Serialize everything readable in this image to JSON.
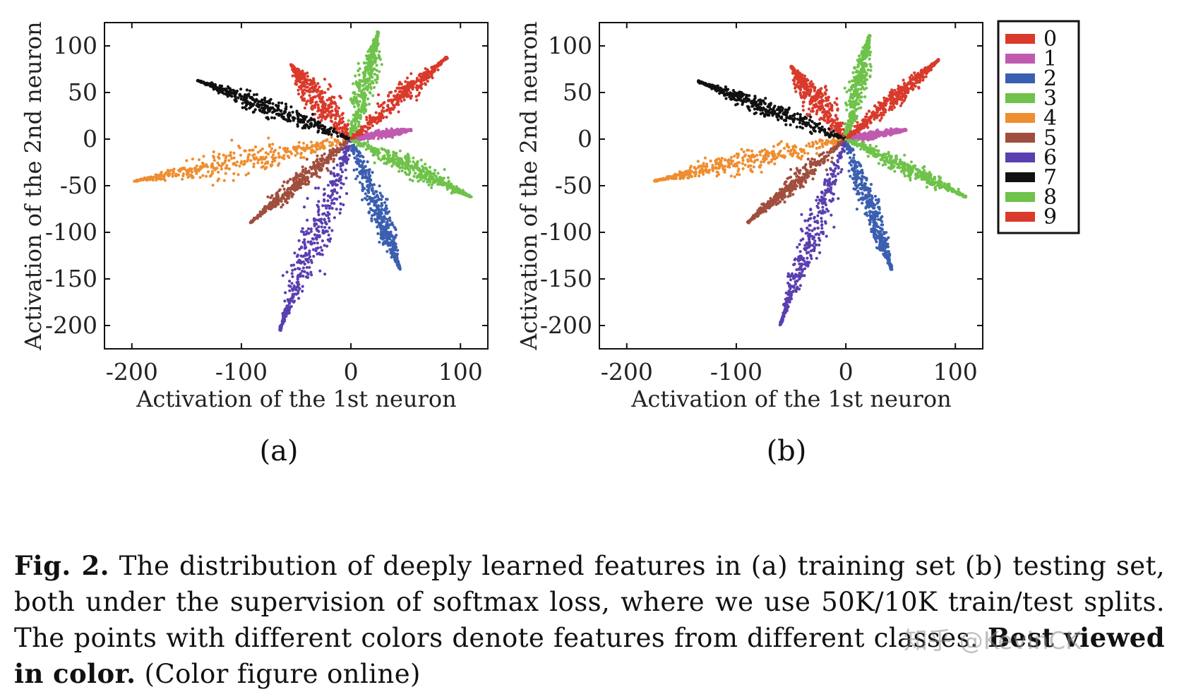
{
  "chart_data": [
    {
      "type": "scatter",
      "panel_label": "(a)",
      "xlabel": "Activation of the 1st neuron",
      "ylabel": "Activation of the 2nd neuron",
      "xlim": [
        -225,
        125
      ],
      "ylim": [
        -225,
        125
      ],
      "xticks": [
        -200,
        -100,
        0,
        100
      ],
      "yticks": [
        100,
        50,
        0,
        -50,
        -100,
        -150,
        -200
      ],
      "series": [
        {
          "name": "0",
          "color": "#d93a2b",
          "tip": [
            -55,
            80
          ],
          "width": 17
        },
        {
          "name": "1",
          "color": "#c05aaf",
          "tip": [
            55,
            10
          ],
          "width": 4
        },
        {
          "name": "2",
          "color": "#3b5fb0",
          "tip": [
            45,
            -140
          ],
          "width": 12
        },
        {
          "name": "3",
          "color": "#6fc24a",
          "tip": [
            25,
            115
          ],
          "width": 11
        },
        {
          "name": "4",
          "color": "#ee8e30",
          "tip": [
            -198,
            -45
          ],
          "width": 18
        },
        {
          "name": "5",
          "color": "#a04e3e",
          "tip": [
            -92,
            -90
          ],
          "width": 9
        },
        {
          "name": "6",
          "color": "#5a3fb0",
          "tip": [
            -65,
            -205
          ],
          "width": 17
        },
        {
          "name": "7",
          "color": "#111111",
          "tip": [
            -140,
            63
          ],
          "width": 11
        },
        {
          "name": "8",
          "color": "#6fc24a",
          "tip": [
            110,
            -62
          ],
          "width": 11
        },
        {
          "name": "9",
          "color": "#d93a2b",
          "tip": [
            88,
            88
          ],
          "width": 11
        }
      ]
    },
    {
      "type": "scatter",
      "panel_label": "(b)",
      "xlabel": "Activation of the 1st neuron",
      "ylabel": "Activation of the 2nd neuron",
      "xlim": [
        -225,
        125
      ],
      "ylim": [
        -225,
        125
      ],
      "xticks": [
        -200,
        -100,
        0,
        100
      ],
      "yticks": [
        100,
        50,
        0,
        -50,
        -100,
        -150,
        -200
      ],
      "series": [
        {
          "name": "0",
          "color": "#d93a2b",
          "tip": [
            -50,
            78
          ],
          "width": 14
        },
        {
          "name": "1",
          "color": "#c05aaf",
          "tip": [
            55,
            10
          ],
          "width": 4
        },
        {
          "name": "2",
          "color": "#3b5fb0",
          "tip": [
            42,
            -140
          ],
          "width": 10
        },
        {
          "name": "3",
          "color": "#6fc24a",
          "tip": [
            22,
            112
          ],
          "width": 9
        },
        {
          "name": "4",
          "color": "#ee8e30",
          "tip": [
            -175,
            -45
          ],
          "width": 14
        },
        {
          "name": "5",
          "color": "#a04e3e",
          "tip": [
            -90,
            -90
          ],
          "width": 8
        },
        {
          "name": "6",
          "color": "#5a3fb0",
          "tip": [
            -60,
            -200
          ],
          "width": 12
        },
        {
          "name": "7",
          "color": "#111111",
          "tip": [
            -135,
            62
          ],
          "width": 9
        },
        {
          "name": "8",
          "color": "#6fc24a",
          "tip": [
            110,
            -62
          ],
          "width": 9
        },
        {
          "name": "9",
          "color": "#d93a2b",
          "tip": [
            85,
            85
          ],
          "width": 9
        }
      ]
    }
  ],
  "legend": {
    "items": [
      {
        "label": "0",
        "color": "#d93a2b"
      },
      {
        "label": "1",
        "color": "#c05aaf"
      },
      {
        "label": "2",
        "color": "#3b5fb0"
      },
      {
        "label": "3",
        "color": "#6fc24a"
      },
      {
        "label": "4",
        "color": "#ee8e30"
      },
      {
        "label": "5",
        "color": "#a04e3e"
      },
      {
        "label": "6",
        "color": "#5a3fb0"
      },
      {
        "label": "7",
        "color": "#111111"
      },
      {
        "label": "8",
        "color": "#6fc24a"
      },
      {
        "label": "9",
        "color": "#d93a2b"
      }
    ]
  },
  "caption": {
    "bold_prefix": "Fig. 2.",
    "text": " The distribution of deeply learned features in (a) training set (b) testing set, both under the supervision of softmax loss, where we use 50K/10K train/test splits. The points with different colors denote features from different classes. ",
    "bold_suffix": "Best viewed in color.",
    "tail": " (Color figure online)"
  },
  "watermark": "知乎 @KevinCK"
}
